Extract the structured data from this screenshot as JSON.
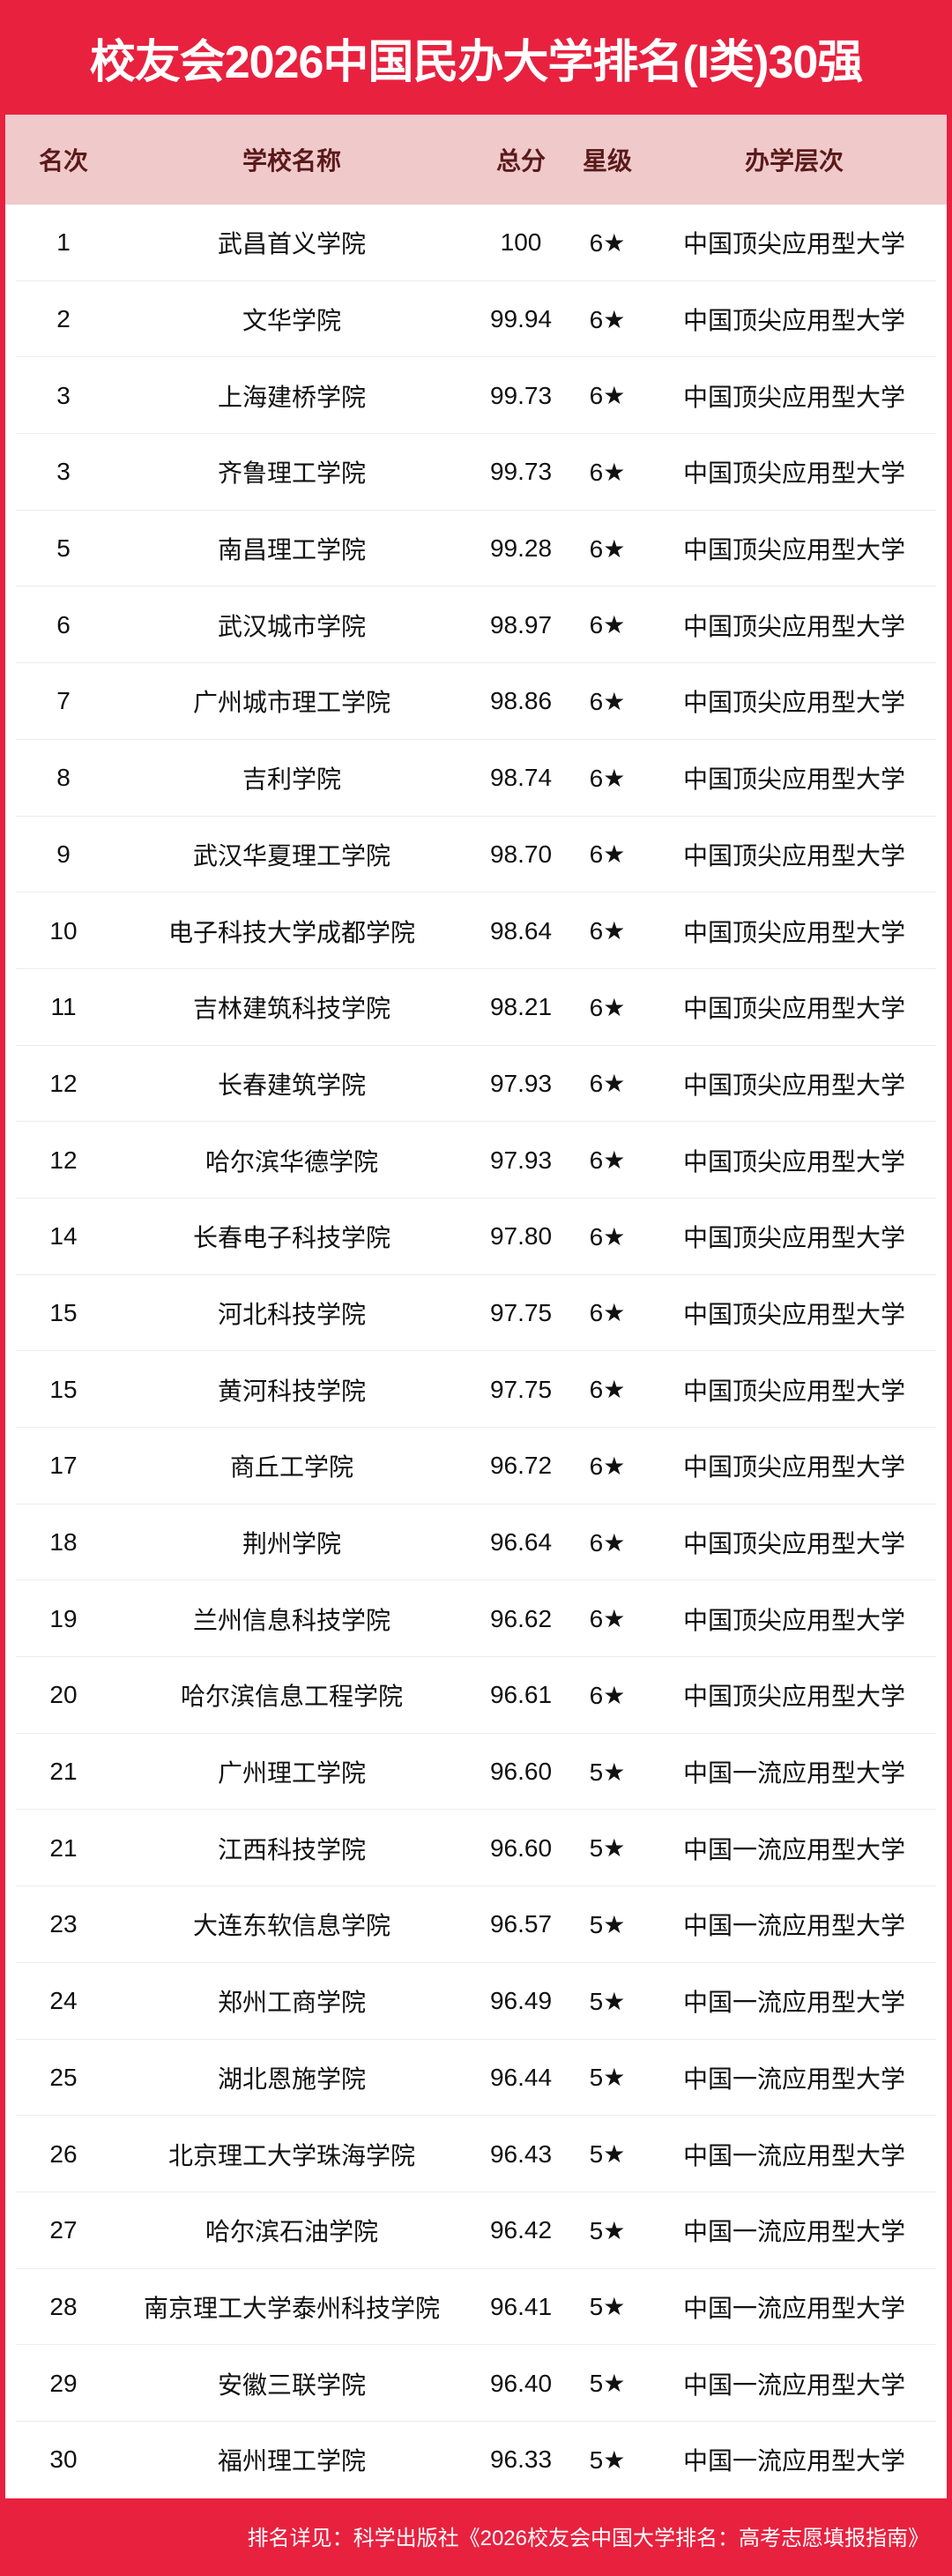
{
  "title": "校友会2026中国民办大学排名(I类)30强",
  "colors": {
    "brand_red": "#e8213f",
    "header_bg": "#f0c9cb",
    "header_text": "#5a1a1a"
  },
  "table": {
    "headers": [
      "名次",
      "学校名称",
      "总分",
      "星级",
      "办学层次"
    ],
    "rows": [
      [
        "1",
        "武昌首义学院",
        "100",
        "6★",
        "中国顶尖应用型大学"
      ],
      [
        "2",
        "文华学院",
        "99.94",
        "6★",
        "中国顶尖应用型大学"
      ],
      [
        "3",
        "上海建桥学院",
        "99.73",
        "6★",
        "中国顶尖应用型大学"
      ],
      [
        "3",
        "齐鲁理工学院",
        "99.73",
        "6★",
        "中国顶尖应用型大学"
      ],
      [
        "5",
        "南昌理工学院",
        "99.28",
        "6★",
        "中国顶尖应用型大学"
      ],
      [
        "6",
        "武汉城市学院",
        "98.97",
        "6★",
        "中国顶尖应用型大学"
      ],
      [
        "7",
        "广州城市理工学院",
        "98.86",
        "6★",
        "中国顶尖应用型大学"
      ],
      [
        "8",
        "吉利学院",
        "98.74",
        "6★",
        "中国顶尖应用型大学"
      ],
      [
        "9",
        "武汉华夏理工学院",
        "98.70",
        "6★",
        "中国顶尖应用型大学"
      ],
      [
        "10",
        "电子科技大学成都学院",
        "98.64",
        "6★",
        "中国顶尖应用型大学"
      ],
      [
        "11",
        "吉林建筑科技学院",
        "98.21",
        "6★",
        "中国顶尖应用型大学"
      ],
      [
        "12",
        "长春建筑学院",
        "97.93",
        "6★",
        "中国顶尖应用型大学"
      ],
      [
        "12",
        "哈尔滨华德学院",
        "97.93",
        "6★",
        "中国顶尖应用型大学"
      ],
      [
        "14",
        "长春电子科技学院",
        "97.80",
        "6★",
        "中国顶尖应用型大学"
      ],
      [
        "15",
        "河北科技学院",
        "97.75",
        "6★",
        "中国顶尖应用型大学"
      ],
      [
        "15",
        "黄河科技学院",
        "97.75",
        "6★",
        "中国顶尖应用型大学"
      ],
      [
        "17",
        "商丘工学院",
        "96.72",
        "6★",
        "中国顶尖应用型大学"
      ],
      [
        "18",
        "荆州学院",
        "96.64",
        "6★",
        "中国顶尖应用型大学"
      ],
      [
        "19",
        "兰州信息科技学院",
        "96.62",
        "6★",
        "中国顶尖应用型大学"
      ],
      [
        "20",
        "哈尔滨信息工程学院",
        "96.61",
        "6★",
        "中国顶尖应用型大学"
      ],
      [
        "21",
        "广州理工学院",
        "96.60",
        "5★",
        "中国一流应用型大学"
      ],
      [
        "21",
        "江西科技学院",
        "96.60",
        "5★",
        "中国一流应用型大学"
      ],
      [
        "23",
        "大连东软信息学院",
        "96.57",
        "5★",
        "中国一流应用型大学"
      ],
      [
        "24",
        "郑州工商学院",
        "96.49",
        "5★",
        "中国一流应用型大学"
      ],
      [
        "25",
        "湖北恩施学院",
        "96.44",
        "5★",
        "中国一流应用型大学"
      ],
      [
        "26",
        "北京理工大学珠海学院",
        "96.43",
        "5★",
        "中国一流应用型大学"
      ],
      [
        "27",
        "哈尔滨石油学院",
        "96.42",
        "5★",
        "中国一流应用型大学"
      ],
      [
        "28",
        "南京理工大学泰州科技学院",
        "96.41",
        "5★",
        "中国一流应用型大学"
      ],
      [
        "29",
        "安徽三联学院",
        "96.40",
        "5★",
        "中国一流应用型大学"
      ],
      [
        "30",
        "福州理工学院",
        "96.33",
        "5★",
        "中国一流应用型大学"
      ]
    ]
  },
  "footer": "排名详见：科学出版社《2026校友会中国大学排名：高考志愿填报指南》"
}
